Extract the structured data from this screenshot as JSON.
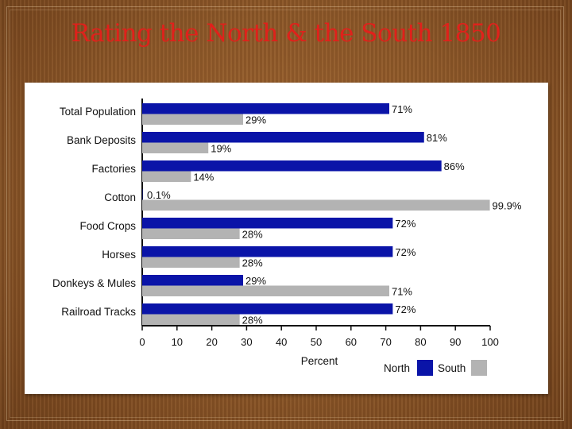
{
  "slide": {
    "title": "Rating the North & the South 1850"
  },
  "chart_data": {
    "type": "bar",
    "orientation": "horizontal",
    "categories": [
      "Total Population",
      "Bank Deposits",
      "Factories",
      "Cotton",
      "Food Crops",
      "Horses",
      "Donkeys & Mules",
      "Railroad Tracks"
    ],
    "series": [
      {
        "name": "North",
        "color": "#0a14a8",
        "values": [
          71,
          81,
          86,
          0.1,
          72,
          72,
          29,
          72
        ],
        "labels": [
          "71%",
          "81%",
          "86%",
          "0.1%",
          "72%",
          "72%",
          "29%",
          "72%"
        ]
      },
      {
        "name": "South",
        "color": "#b3b3b3",
        "values": [
          29,
          19,
          14,
          99.9,
          28,
          28,
          71,
          28
        ],
        "labels": [
          "29%",
          "19%",
          "14%",
          "99.9%",
          "28%",
          "28%",
          "71%",
          "28%"
        ]
      }
    ],
    "xlabel": "Percent",
    "ylabel": "",
    "xlim": [
      0,
      100
    ],
    "xticks": [
      0,
      10,
      20,
      30,
      40,
      50,
      60,
      70,
      80,
      90,
      100
    ],
    "xtick_labels": [
      "0",
      "10",
      "20",
      "30",
      "40",
      "50",
      "60",
      "70",
      "80",
      "90",
      "100"
    ],
    "legend": {
      "placement": "bottom-right",
      "entries": [
        "North",
        "South"
      ]
    },
    "grid": false
  }
}
